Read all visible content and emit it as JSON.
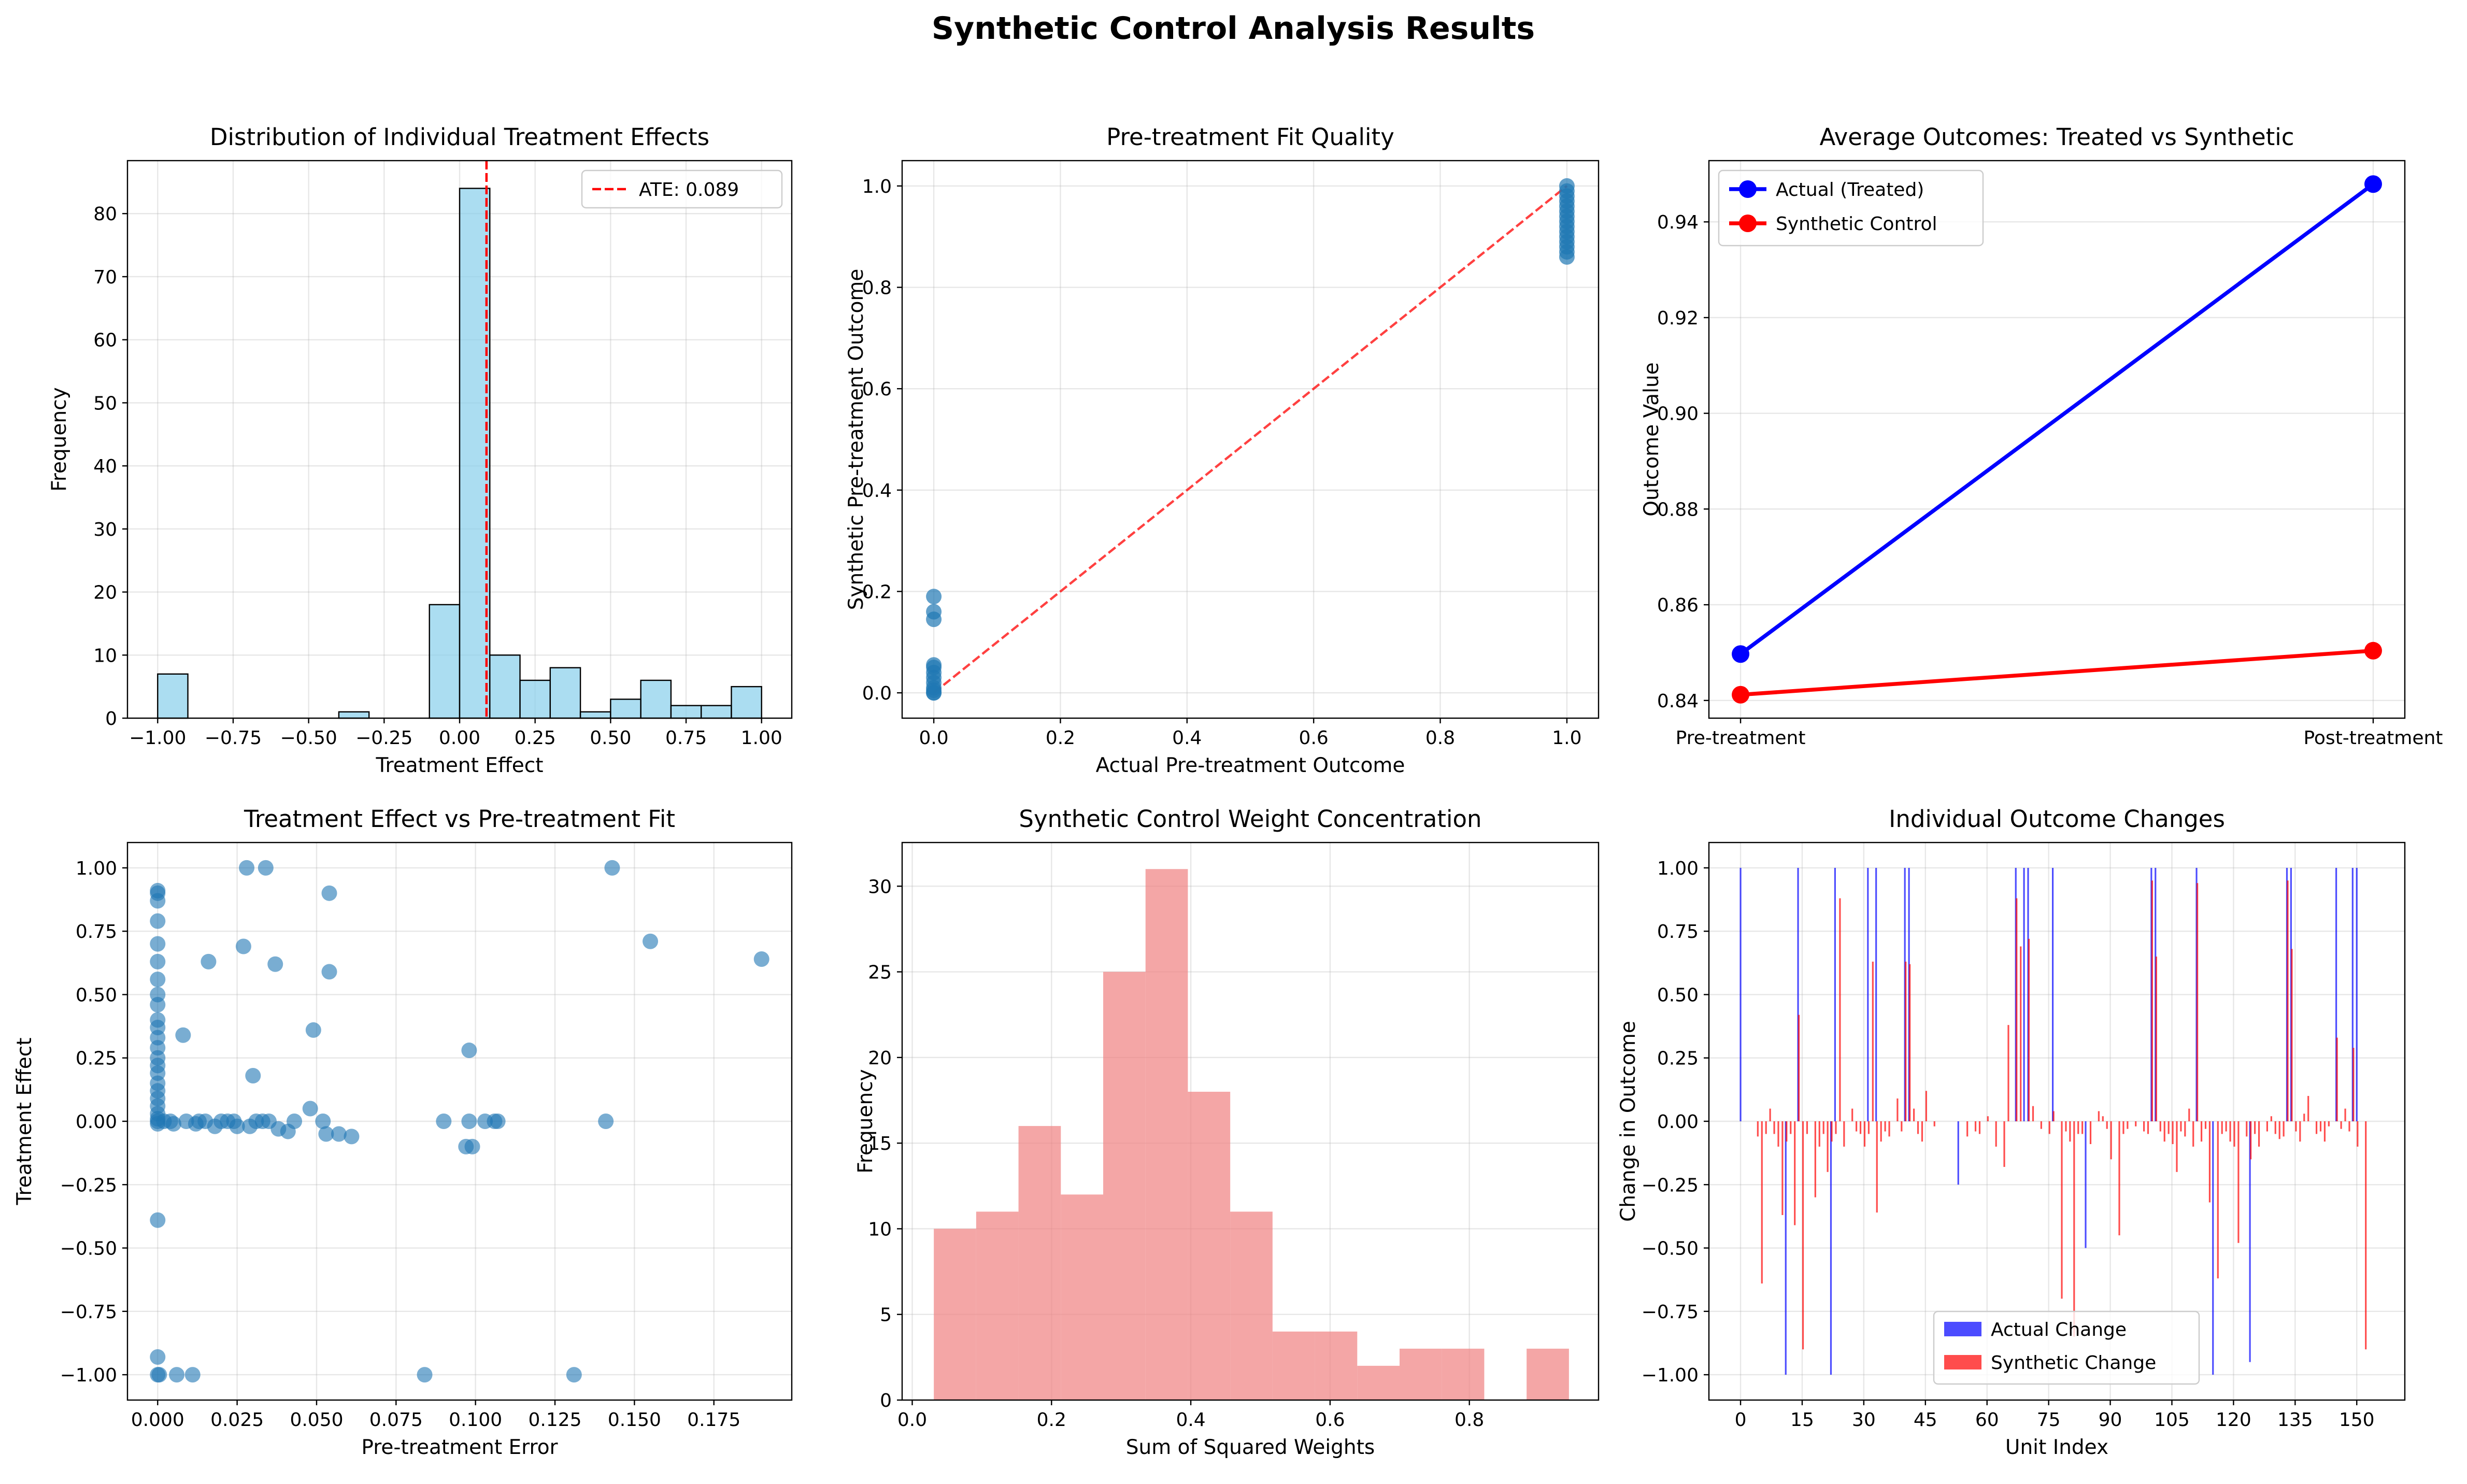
{
  "figure": {
    "title": "Synthetic Control Analysis Results"
  },
  "chart_data": [
    {
      "id": "hist_effects",
      "type": "bar",
      "title": "Distribution of Individual Treatment Effects",
      "xlabel": "Treatment Effect",
      "ylabel": "Frequency",
      "xlim": [
        -1.1,
        1.1
      ],
      "ylim": [
        0,
        88.4
      ],
      "xticks": [
        -1.0,
        -0.75,
        -0.5,
        -0.25,
        0.0,
        0.25,
        0.5,
        0.75,
        1.0
      ],
      "xticklabels": [
        "−1.00",
        "−0.75",
        "−0.50",
        "−0.25",
        "0.00",
        "0.25",
        "0.50",
        "0.75",
        "1.00"
      ],
      "yticks": [
        0,
        10,
        20,
        30,
        40,
        50,
        60,
        70,
        80
      ],
      "yticklabels": [
        "0",
        "10",
        "20",
        "30",
        "40",
        "50",
        "60",
        "70",
        "80"
      ],
      "bin_edges": [
        -1.0,
        -0.9,
        -0.8,
        -0.7,
        -0.6,
        -0.5,
        -0.4,
        -0.3,
        -0.2,
        -0.1,
        0.0,
        0.1,
        0.2,
        0.3,
        0.4,
        0.5,
        0.6,
        0.7,
        0.8,
        0.9,
        1.0
      ],
      "counts": [
        7,
        0,
        0,
        0,
        0,
        0,
        1,
        0,
        0,
        18,
        84,
        10,
        6,
        8,
        1,
        3,
        6,
        2,
        2,
        5
      ],
      "bar_color": "#87ceeb",
      "reference_line": {
        "x": 0.089,
        "color": "#ff0000",
        "style": "dashed",
        "label": "ATE: 0.089"
      },
      "grid": true,
      "legend": "top-right"
    },
    {
      "id": "fit_quality",
      "type": "scatter",
      "title": "Pre-treatment Fit Quality",
      "xlabel": "Actual Pre-treatment Outcome",
      "ylabel": "Synthetic Pre-treatment Outcome",
      "xlim": [
        -0.05,
        1.05
      ],
      "ylim": [
        -0.05,
        1.05
      ],
      "xticks": [
        0.0,
        0.2,
        0.4,
        0.6,
        0.8,
        1.0
      ],
      "xticklabels": [
        "0.0",
        "0.2",
        "0.4",
        "0.6",
        "0.8",
        "1.0"
      ],
      "yticks": [
        0.0,
        0.2,
        0.4,
        0.6,
        0.8,
        1.0
      ],
      "yticklabels": [
        "0.0",
        "0.2",
        "0.4",
        "0.6",
        "0.8",
        "1.0"
      ],
      "points": [
        [
          0,
          0.19
        ],
        [
          0,
          0.16
        ],
        [
          0,
          0.145
        ],
        [
          0,
          0.055
        ],
        [
          0,
          0.05
        ],
        [
          0,
          0.04
        ],
        [
          0,
          0.03
        ],
        [
          0,
          0.02
        ],
        [
          0,
          0.01
        ],
        [
          0,
          0.005
        ],
        [
          0,
          0
        ],
        [
          0,
          0
        ],
        [
          1,
          1.0
        ],
        [
          1,
          0.99
        ],
        [
          1,
          0.98
        ],
        [
          1,
          0.97
        ],
        [
          1,
          0.96
        ],
        [
          1,
          0.95
        ],
        [
          1,
          0.94
        ],
        [
          1,
          0.93
        ],
        [
          1,
          0.92
        ],
        [
          1,
          0.91
        ],
        [
          1,
          0.9
        ],
        [
          1,
          0.89
        ],
        [
          1,
          0.88
        ],
        [
          1,
          0.87
        ],
        [
          1,
          0.86
        ]
      ],
      "point_color": "#1f77b4",
      "reference_line": {
        "from": [
          0,
          0
        ],
        "to": [
          1,
          1
        ],
        "color": "#ff0000",
        "style": "dashed"
      },
      "grid": true
    },
    {
      "id": "avg_outcomes",
      "type": "line",
      "title": "Average Outcomes: Treated vs Synthetic",
      "ylabel": "Outcome Value",
      "categories": [
        "Pre-treatment",
        "Post-treatment"
      ],
      "series": [
        {
          "name": "Actual (Treated)",
          "values": [
            0.8497,
            0.9479
          ],
          "color": "#0000ff"
        },
        {
          "name": "Synthetic Control",
          "values": [
            0.8412,
            0.8504
          ],
          "color": "#ff0000"
        }
      ],
      "ylim": [
        0.8363,
        0.9528
      ],
      "yticks": [
        0.84,
        0.86,
        0.88,
        0.9,
        0.92,
        0.94
      ],
      "yticklabels": [
        "0.84",
        "0.86",
        "0.88",
        "0.90",
        "0.92",
        "0.94"
      ],
      "grid": true,
      "legend": "top-left"
    },
    {
      "id": "effect_vs_fit",
      "type": "scatter",
      "title": "Treatment Effect vs Pre-treatment Fit",
      "xlabel": "Pre-treatment Error",
      "ylabel": "Treatment Effect",
      "xlim": [
        -0.0095,
        0.1995
      ],
      "ylim": [
        -1.1,
        1.1
      ],
      "xticks": [
        0.0,
        0.025,
        0.05,
        0.075,
        0.1,
        0.125,
        0.15,
        0.175
      ],
      "xticklabels": [
        "0.000",
        "0.025",
        "0.050",
        "0.075",
        "0.100",
        "0.125",
        "0.150",
        "0.175"
      ],
      "yticks": [
        -1.0,
        -0.75,
        -0.5,
        -0.25,
        0.0,
        0.25,
        0.5,
        0.75,
        1.0
      ],
      "yticklabels": [
        "−1.00",
        "−0.75",
        "−0.50",
        "−0.25",
        "0.00",
        "0.25",
        "0.50",
        "0.75",
        "1.00"
      ],
      "points": [
        [
          0,
          0.91
        ],
        [
          0,
          0.9
        ],
        [
          0,
          0.87
        ],
        [
          0,
          0.79
        ],
        [
          0,
          0.7
        ],
        [
          0,
          0.63
        ],
        [
          0,
          0.56
        ],
        [
          0,
          0.5
        ],
        [
          0,
          0.46
        ],
        [
          0,
          0.4
        ],
        [
          0,
          0.37
        ],
        [
          0,
          0.33
        ],
        [
          0,
          0.29
        ],
        [
          0,
          0.25
        ],
        [
          0,
          0.22
        ],
        [
          0,
          0.19
        ],
        [
          0,
          0.15
        ],
        [
          0,
          0.12
        ],
        [
          0,
          0.09
        ],
        [
          0,
          0.06
        ],
        [
          0,
          0.03
        ],
        [
          0,
          0.01
        ],
        [
          0,
          0
        ],
        [
          0,
          -0.01
        ],
        [
          0,
          -0.39
        ],
        [
          0,
          -0.93
        ],
        [
          0,
          -1.0
        ],
        [
          0.0005,
          -1.0
        ],
        [
          0.002,
          0
        ],
        [
          0.004,
          0
        ],
        [
          0.005,
          -0.01
        ],
        [
          0.006,
          -1.0
        ],
        [
          0.008,
          0.34
        ],
        [
          0.009,
          0
        ],
        [
          0.011,
          -1.0
        ],
        [
          0.012,
          -0.01
        ],
        [
          0.013,
          0
        ],
        [
          0.015,
          0
        ],
        [
          0.016,
          0.63
        ],
        [
          0.018,
          -0.02
        ],
        [
          0.02,
          0
        ],
        [
          0.022,
          0
        ],
        [
          0.024,
          0
        ],
        [
          0.025,
          -0.02
        ],
        [
          0.027,
          0.69
        ],
        [
          0.028,
          1.0
        ],
        [
          0.029,
          -0.02
        ],
        [
          0.03,
          0.18
        ],
        [
          0.031,
          0
        ],
        [
          0.033,
          0
        ],
        [
          0.034,
          1.0
        ],
        [
          0.035,
          0
        ],
        [
          0.037,
          0.62
        ],
        [
          0.038,
          -0.03
        ],
        [
          0.041,
          -0.04
        ],
        [
          0.043,
          0
        ],
        [
          0.048,
          0.05
        ],
        [
          0.049,
          0.36
        ],
        [
          0.052,
          0
        ],
        [
          0.053,
          -0.05
        ],
        [
          0.054,
          0.9
        ],
        [
          0.054,
          0.59
        ],
        [
          0.057,
          -0.05
        ],
        [
          0.061,
          -0.06
        ],
        [
          0.084,
          -1.0
        ],
        [
          0.09,
          0
        ],
        [
          0.097,
          -0.1
        ],
        [
          0.098,
          0
        ],
        [
          0.098,
          0.28
        ],
        [
          0.099,
          -0.1
        ],
        [
          0.103,
          0
        ],
        [
          0.106,
          0
        ],
        [
          0.107,
          0
        ],
        [
          0.131,
          -1.0
        ],
        [
          0.141,
          0
        ],
        [
          0.143,
          1.0
        ],
        [
          0.155,
          0.71
        ],
        [
          0.19,
          0.64
        ]
      ],
      "point_color": "#1f77b4",
      "grid": true
    },
    {
      "id": "weight_concentration",
      "type": "bar",
      "title": "Synthetic Control Weight Concentration",
      "xlabel": "Sum of Squared Weights",
      "ylabel": "Frequency",
      "xlim": [
        -0.0145,
        0.9855
      ],
      "ylim": [
        0,
        32.55
      ],
      "xticks": [
        0.0,
        0.2,
        0.4,
        0.6,
        0.8
      ],
      "xticklabels": [
        "0.0",
        "0.2",
        "0.4",
        "0.6",
        "0.8"
      ],
      "yticks": [
        0,
        5,
        10,
        15,
        20,
        25,
        30
      ],
      "yticklabels": [
        "0",
        "5",
        "10",
        "15",
        "20",
        "25",
        "30"
      ],
      "bin_start": 0.031,
      "bin_width": 0.0608,
      "counts": [
        10,
        11,
        16,
        12,
        25,
        31,
        18,
        11,
        4,
        4,
        2,
        3,
        3,
        0,
        3
      ],
      "bar_color": "#f08080",
      "grid": true
    },
    {
      "id": "outcome_changes",
      "type": "bar",
      "title": "Individual Outcome Changes",
      "xlabel": "Unit Index",
      "ylabel": "Change in Outcome",
      "xlim": [
        -7.7,
        161.7
      ],
      "ylim": [
        -1.1,
        1.1
      ],
      "xticks": [
        0,
        15,
        30,
        45,
        60,
        75,
        90,
        105,
        120,
        135,
        150
      ],
      "xticklabels": [
        "0",
        "15",
        "30",
        "45",
        "60",
        "75",
        "90",
        "105",
        "120",
        "135",
        "150"
      ],
      "yticks": [
        -1.0,
        -0.75,
        -0.5,
        -0.25,
        0.0,
        0.25,
        0.5,
        0.75,
        1.0
      ],
      "yticklabels": [
        "−1.00",
        "−0.75",
        "−0.50",
        "−0.25",
        "0.00",
        "0.25",
        "0.50",
        "0.75",
        "1.00"
      ],
      "actual_changes": [
        [
          0,
          1.0
        ],
        [
          11,
          -1.0
        ],
        [
          14,
          1.0
        ],
        [
          22,
          -1.0
        ],
        [
          23,
          1.0
        ],
        [
          31,
          1.0
        ],
        [
          33,
          1.0
        ],
        [
          40,
          1.0
        ],
        [
          41,
          1.0
        ],
        [
          53,
          -0.25
        ],
        [
          67,
          1.0
        ],
        [
          69,
          1.0
        ],
        [
          70,
          1.0
        ],
        [
          76,
          1.0
        ],
        [
          84,
          -0.5
        ],
        [
          100,
          1.0
        ],
        [
          101,
          1.0
        ],
        [
          111,
          1.0
        ],
        [
          115,
          -1.0
        ],
        [
          124,
          -0.95
        ],
        [
          133,
          1.0
        ],
        [
          134,
          1.0
        ],
        [
          145,
          1.0
        ],
        [
          149,
          1.0
        ],
        [
          150,
          1.0
        ]
      ],
      "synthetic_changes": [
        [
          4,
          -0.06
        ],
        [
          5,
          -0.64
        ],
        [
          6,
          -0.05
        ],
        [
          7,
          0.05
        ],
        [
          8,
          -0.05
        ],
        [
          9,
          -0.1
        ],
        [
          10,
          -0.37
        ],
        [
          11,
          -0.08
        ],
        [
          12,
          -0.05
        ],
        [
          13,
          -0.41
        ],
        [
          14,
          0.42
        ],
        [
          15,
          -0.9
        ],
        [
          16,
          -0.05
        ],
        [
          18,
          -0.3
        ],
        [
          19,
          -0.1
        ],
        [
          20,
          -0.05
        ],
        [
          21,
          -0.2
        ],
        [
          22,
          -0.08
        ],
        [
          23,
          -0.05
        ],
        [
          24,
          0.88
        ],
        [
          25,
          -0.1
        ],
        [
          27,
          0.05
        ],
        [
          28,
          -0.04
        ],
        [
          29,
          -0.05
        ],
        [
          30,
          -0.1
        ],
        [
          31,
          -0.05
        ],
        [
          32,
          0.63
        ],
        [
          33,
          -0.36
        ],
        [
          34,
          -0.08
        ],
        [
          35,
          -0.04
        ],
        [
          36,
          -0.06
        ],
        [
          38,
          0.09
        ],
        [
          39,
          -0.04
        ],
        [
          40,
          0.63
        ],
        [
          41,
          0.62
        ],
        [
          42,
          0.05
        ],
        [
          43,
          -0.05
        ],
        [
          44,
          -0.08
        ],
        [
          45,
          0.12
        ],
        [
          47,
          -0.02
        ],
        [
          55,
          -0.06
        ],
        [
          57,
          -0.04
        ],
        [
          58,
          -0.05
        ],
        [
          60,
          0.02
        ],
        [
          62,
          -0.1
        ],
        [
          64,
          -0.18
        ],
        [
          65,
          0.38
        ],
        [
          67,
          0.88
        ],
        [
          68,
          0.69
        ],
        [
          70,
          0.72
        ],
        [
          71,
          0.06
        ],
        [
          73,
          -0.03
        ],
        [
          75,
          -0.05
        ],
        [
          76,
          0.04
        ],
        [
          78,
          -0.7
        ],
        [
          79,
          -0.04
        ],
        [
          80,
          -0.08
        ],
        [
          81,
          -0.85
        ],
        [
          82,
          -0.05
        ],
        [
          83,
          -0.05
        ],
        [
          85,
          -0.09
        ],
        [
          87,
          0.04
        ],
        [
          88,
          0.02
        ],
        [
          89,
          -0.03
        ],
        [
          90,
          -0.15
        ],
        [
          92,
          -0.45
        ],
        [
          93,
          -0.05
        ],
        [
          94,
          -0.03
        ],
        [
          96,
          -0.02
        ],
        [
          98,
          -0.04
        ],
        [
          99,
          -0.05
        ],
        [
          100,
          0.95
        ],
        [
          101,
          0.65
        ],
        [
          102,
          -0.04
        ],
        [
          103,
          -0.08
        ],
        [
          104,
          -0.05
        ],
        [
          105,
          -0.09
        ],
        [
          106,
          -0.2
        ],
        [
          107,
          -0.04
        ],
        [
          108,
          -0.06
        ],
        [
          109,
          0.05
        ],
        [
          110,
          -0.1
        ],
        [
          111,
          0.94
        ],
        [
          112,
          -0.08
        ],
        [
          113,
          -0.03
        ],
        [
          114,
          -0.32
        ],
        [
          116,
          -0.62
        ],
        [
          117,
          -0.05
        ],
        [
          118,
          -0.04
        ],
        [
          119,
          -0.08
        ],
        [
          120,
          -0.1
        ],
        [
          121,
          -0.48
        ],
        [
          123,
          -0.06
        ],
        [
          124,
          -0.15
        ],
        [
          125,
          -0.05
        ],
        [
          126,
          -0.1
        ],
        [
          128,
          -0.04
        ],
        [
          129,
          0.02
        ],
        [
          130,
          -0.05
        ],
        [
          131,
          -0.07
        ],
        [
          132,
          -0.06
        ],
        [
          133,
          0.95
        ],
        [
          134,
          0.68
        ],
        [
          135,
          -0.04
        ],
        [
          136,
          -0.08
        ],
        [
          137,
          0.03
        ],
        [
          138,
          0.1
        ],
        [
          140,
          -0.05
        ],
        [
          141,
          -0.04
        ],
        [
          142,
          -0.08
        ],
        [
          143,
          -0.02
        ],
        [
          145,
          0.33
        ],
        [
          146,
          -0.03
        ],
        [
          147,
          0.05
        ],
        [
          148,
          -0.04
        ],
        [
          149,
          0.29
        ],
        [
          150,
          -0.1
        ],
        [
          152,
          -0.9
        ]
      ],
      "series": [
        {
          "name": "Actual Change",
          "color": "#0000ff"
        },
        {
          "name": "Synthetic Change",
          "color": "#ff0000"
        }
      ],
      "grid": true,
      "legend": "bottom-center"
    }
  ]
}
